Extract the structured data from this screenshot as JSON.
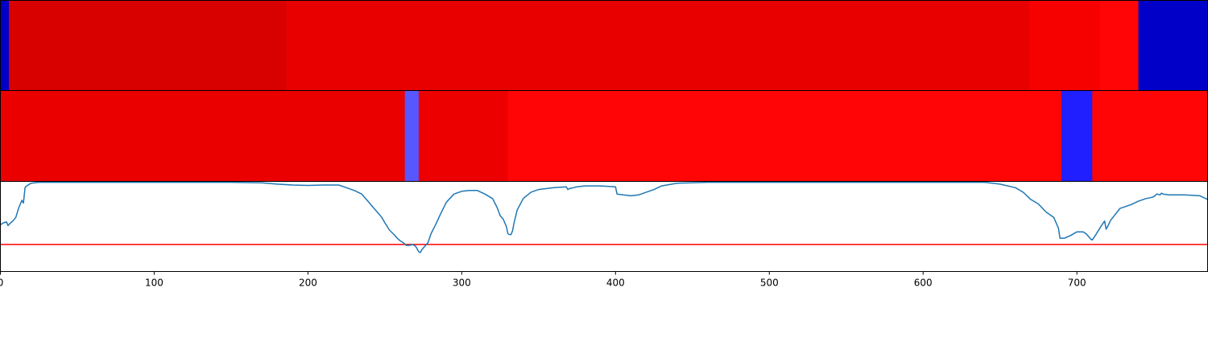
{
  "chart_data": [
    {
      "type": "heatmap",
      "colormap": "seismic",
      "xlim": [
        0,
        785
      ],
      "vlim": [
        -1,
        1
      ],
      "segments": [
        {
          "start": 0,
          "end": 5.5,
          "value": -0.65
        },
        {
          "start": 5.5,
          "end": 186,
          "value": 0.65
        },
        {
          "start": 186,
          "end": 669,
          "value": 0.59
        },
        {
          "start": 669,
          "end": 715,
          "value": 0.53
        },
        {
          "start": 715,
          "end": 740,
          "value": 0.49
        },
        {
          "start": 740,
          "end": 785,
          "value": -0.65
        }
      ]
    },
    {
      "type": "heatmap",
      "colormap": "seismic",
      "xlim": [
        0,
        785
      ],
      "vlim": [
        -1,
        1
      ],
      "segments": [
        {
          "start": 0,
          "end": 263,
          "value": 0.58
        },
        {
          "start": 263,
          "end": 272,
          "value": -0.33
        },
        {
          "start": 272,
          "end": 330,
          "value": 0.57
        },
        {
          "start": 330,
          "end": 690,
          "value": 0.49
        },
        {
          "start": 690,
          "end": 710,
          "value": -0.44
        },
        {
          "start": 710,
          "end": 785,
          "value": 0.49
        }
      ]
    },
    {
      "type": "line",
      "xlim": [
        0,
        785
      ],
      "ylim": [
        0,
        1
      ],
      "x_ticks": [
        0,
        100,
        200,
        300,
        400,
        500,
        600,
        700
      ],
      "threshold": 0.3,
      "threshold_color": "#ff0000",
      "line_color": "#1f77b4",
      "series": [
        {
          "x": [
            0,
            2,
            4,
            5,
            6,
            8,
            10,
            12,
            14,
            15,
            16,
            17,
            20,
            25,
            50,
            100,
            150,
            170,
            180,
            190,
            200,
            210,
            220,
            225,
            230,
            235,
            240,
            242,
            244,
            246,
            248,
            250,
            253,
            256,
            258,
            260,
            262,
            264,
            266,
            268,
            270,
            272,
            273,
            274,
            276,
            278,
            280,
            283,
            286,
            290,
            295,
            300,
            305,
            310,
            315,
            320,
            323,
            325,
            327,
            329,
            330,
            331,
            332,
            333,
            334,
            336,
            340,
            345,
            350,
            360,
            368,
            369,
            370,
            375,
            380,
            385,
            390,
            400,
            401,
            405,
            410,
            415,
            420,
            425,
            430,
            440,
            460,
            500,
            550,
            600,
            640,
            650,
            660,
            665,
            670,
            675,
            680,
            685,
            688,
            689,
            690,
            692,
            696,
            700,
            704,
            706,
            708,
            709,
            710,
            712,
            716,
            718,
            719,
            720,
            722,
            728,
            735,
            740,
            745,
            748,
            750,
            752,
            754,
            755,
            756,
            760,
            770,
            780,
            785
          ],
          "y": [
            0.52,
            0.54,
            0.55,
            0.51,
            0.53,
            0.56,
            0.6,
            0.71,
            0.79,
            0.76,
            0.93,
            0.95,
            0.98,
            0.99,
            0.99,
            0.99,
            0.99,
            0.985,
            0.97,
            0.96,
            0.955,
            0.96,
            0.96,
            0.93,
            0.9,
            0.86,
            0.76,
            0.72,
            0.68,
            0.64,
            0.6,
            0.54,
            0.46,
            0.41,
            0.37,
            0.34,
            0.32,
            0.29,
            0.29,
            0.3,
            0.28,
            0.22,
            0.21,
            0.24,
            0.28,
            0.32,
            0.42,
            0.52,
            0.63,
            0.77,
            0.86,
            0.89,
            0.9,
            0.9,
            0.86,
            0.81,
            0.71,
            0.62,
            0.58,
            0.5,
            0.42,
            0.41,
            0.41,
            0.45,
            0.54,
            0.68,
            0.81,
            0.88,
            0.91,
            0.93,
            0.94,
            0.91,
            0.92,
            0.94,
            0.95,
            0.95,
            0.95,
            0.94,
            0.86,
            0.85,
            0.84,
            0.85,
            0.88,
            0.91,
            0.95,
            0.98,
            0.99,
            0.99,
            0.99,
            0.99,
            0.99,
            0.97,
            0.93,
            0.88,
            0.8,
            0.75,
            0.66,
            0.6,
            0.48,
            0.37,
            0.37,
            0.37,
            0.4,
            0.44,
            0.44,
            0.42,
            0.38,
            0.36,
            0.35,
            0.4,
            0.51,
            0.56,
            0.47,
            0.5,
            0.57,
            0.7,
            0.74,
            0.78,
            0.81,
            0.82,
            0.83,
            0.86,
            0.85,
            0.87,
            0.86,
            0.85,
            0.85,
            0.84,
            0.8
          ]
        }
      ]
    }
  ]
}
